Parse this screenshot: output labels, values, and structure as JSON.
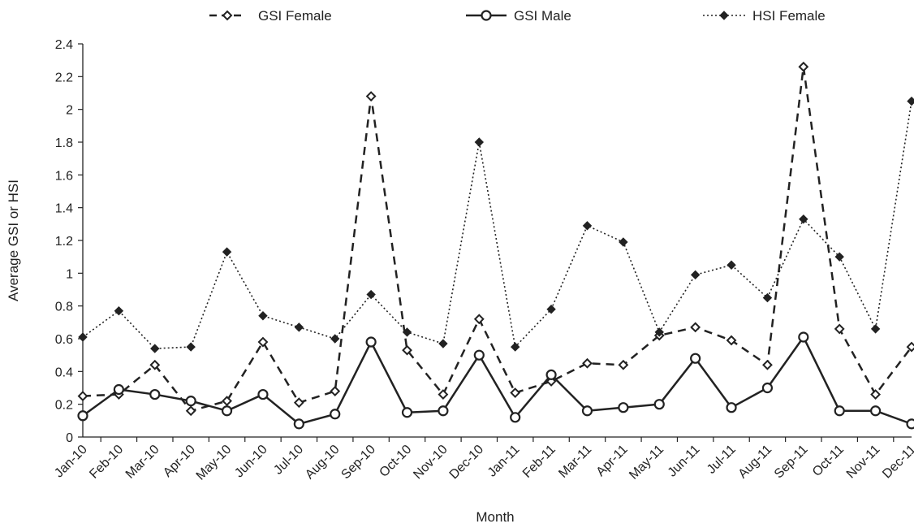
{
  "chart_data": {
    "type": "line",
    "title": "",
    "xlabel": "Month",
    "ylabel": "Average GSI or HSI",
    "ylim": [
      0,
      2.4
    ],
    "yticks": [
      "0",
      "0.2",
      "0.4",
      "0.6",
      "0.8",
      "1",
      "1.2",
      "1.4",
      "1.6",
      "1.8",
      "2",
      "2.2",
      "2.4"
    ],
    "categories": [
      "Jan-10",
      "Feb-10",
      "Mar-10",
      "Apr-10",
      "May-10",
      "Jun-10",
      "Jul-10",
      "Aug-10",
      "Sep-10",
      "Oct-10",
      "Nov-10",
      "Dec-10",
      "Jan-11",
      "Feb-11",
      "Mar-11",
      "Apr-11",
      "May-11",
      "Jun-11",
      "Jul-11",
      "Aug-11",
      "Sep-11",
      "Oct-11",
      "Nov-11",
      "Dec-11"
    ],
    "grid": false,
    "legend_position": "top",
    "series": [
      {
        "name": "GSI Female",
        "color": "#222222",
        "line": "dashed",
        "marker": "open-diamond",
        "points": [
          {
            "x": "Jan-10",
            "y": 0.25
          },
          {
            "x": "Feb-10",
            "y": 0.26
          },
          {
            "x": "Mar-10",
            "y": 0.44
          },
          {
            "x": "Apr-10",
            "y": 0.16
          },
          {
            "x": "May-10",
            "y": 0.22
          },
          {
            "x": "Jun-10",
            "y": 0.58
          },
          {
            "x": "Jul-10",
            "y": 0.21
          },
          {
            "x": "Aug-10",
            "y": 0.28
          },
          {
            "x": "Sep-10",
            "y": 2.08
          },
          {
            "x": "Oct-10",
            "y": 0.53
          },
          {
            "x": "Nov-10",
            "y": 0.26
          },
          {
            "x": "Dec-10",
            "y": 0.72
          },
          {
            "x": "Jan-11",
            "y": 0.27
          },
          {
            "x": "Feb-11",
            "y": 0.34
          },
          {
            "x": "Mar-11",
            "y": 0.45
          },
          {
            "x": "Apr-11",
            "y": 0.44
          },
          {
            "x": "May-11",
            "y": 0.62
          },
          {
            "x": "Jun-11",
            "y": 0.67
          },
          {
            "x": "Jul-11",
            "y": 0.59
          },
          {
            "x": "Aug-11",
            "y": 0.44
          },
          {
            "x": "Sep-11",
            "y": 2.26
          },
          {
            "x": "Oct-11",
            "y": 0.66
          },
          {
            "x": "Nov-11",
            "y": 0.26
          },
          {
            "x": "Dec-11",
            "y": 0.55
          }
        ]
      },
      {
        "name": "GSI Male",
        "color": "#222222",
        "line": "solid",
        "marker": "open-circle",
        "points": [
          {
            "x": "Jan-10",
            "y": 0.13
          },
          {
            "x": "Feb-10",
            "y": 0.29
          },
          {
            "x": "Mar-10",
            "y": 0.26
          },
          {
            "x": "Apr-10",
            "y": 0.22
          },
          {
            "x": "May-10",
            "y": 0.16
          },
          {
            "x": "Jun-10",
            "y": 0.26
          },
          {
            "x": "Jul-10",
            "y": 0.08
          },
          {
            "x": "Aug-10",
            "y": 0.14
          },
          {
            "x": "Sep-10",
            "y": 0.58
          },
          {
            "x": "Oct-10",
            "y": 0.15
          },
          {
            "x": "Nov-10",
            "y": 0.16
          },
          {
            "x": "Dec-10",
            "y": 0.5
          },
          {
            "x": "Jan-11",
            "y": 0.12
          },
          {
            "x": "Feb-11",
            "y": 0.38
          },
          {
            "x": "Mar-11",
            "y": 0.16
          },
          {
            "x": "Apr-11",
            "y": 0.18
          },
          {
            "x": "May-11",
            "y": 0.2
          },
          {
            "x": "Jun-11",
            "y": 0.48
          },
          {
            "x": "Jul-11",
            "y": 0.18
          },
          {
            "x": "Aug-11",
            "y": 0.3
          },
          {
            "x": "Sep-11",
            "y": 0.61
          },
          {
            "x": "Oct-11",
            "y": 0.16
          },
          {
            "x": "Nov-11",
            "y": 0.16
          },
          {
            "x": "Dec-11",
            "y": 0.08
          }
        ]
      },
      {
        "name": "HSI Female",
        "color": "#222222",
        "line": "dotted",
        "marker": "filled-diamond",
        "points": [
          {
            "x": "Jan-10",
            "y": 0.61
          },
          {
            "x": "Feb-10",
            "y": 0.77
          },
          {
            "x": "Mar-10",
            "y": 0.54
          },
          {
            "x": "Apr-10",
            "y": 0.55
          },
          {
            "x": "May-10",
            "y": 1.13
          },
          {
            "x": "Jun-10",
            "y": 0.74
          },
          {
            "x": "Jul-10",
            "y": 0.67
          },
          {
            "x": "Aug-10",
            "y": 0.6
          },
          {
            "x": "Sep-10",
            "y": 0.87
          },
          {
            "x": "Oct-10",
            "y": 0.64
          },
          {
            "x": "Nov-10",
            "y": 0.57
          },
          {
            "x": "Dec-10",
            "y": 1.8
          },
          {
            "x": "Jan-11",
            "y": 0.55
          },
          {
            "x": "Feb-11",
            "y": 0.78
          },
          {
            "x": "Mar-11",
            "y": 1.29
          },
          {
            "x": "Apr-11",
            "y": 1.19
          },
          {
            "x": "May-11",
            "y": 0.64
          },
          {
            "x": "Jun-11",
            "y": 0.99
          },
          {
            "x": "Jul-11",
            "y": 1.05
          },
          {
            "x": "Aug-11",
            "y": 0.85
          },
          {
            "x": "Sep-11",
            "y": 1.33
          },
          {
            "x": "Oct-11",
            "y": 1.1
          },
          {
            "x": "Nov-11",
            "y": 0.66
          },
          {
            "x": "Dec-11",
            "y": 2.05
          }
        ]
      }
    ]
  }
}
